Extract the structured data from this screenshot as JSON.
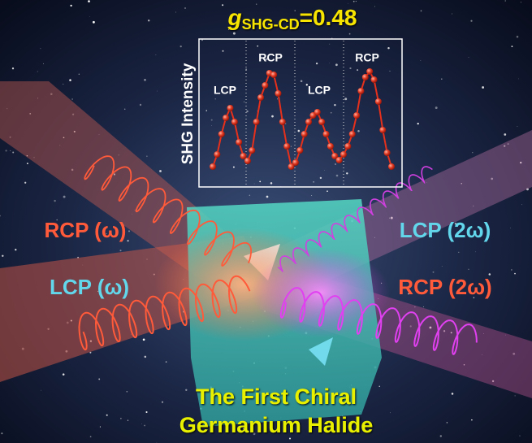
{
  "chart_data": {
    "type": "line",
    "title": {
      "symbol": "g",
      "subscript": "SHG-CD",
      "value": "=0.48"
    },
    "y_label": "SHG Intensity",
    "color": "#e5301c",
    "values": [
      25,
      40,
      65,
      85,
      97,
      80,
      55,
      38,
      32,
      45,
      80,
      110,
      125,
      140,
      138,
      115,
      80,
      50,
      25,
      30,
      45,
      65,
      80,
      88,
      92,
      80,
      65,
      50,
      38,
      33,
      40,
      50,
      65,
      88,
      118,
      135,
      142,
      132,
      105,
      70,
      42,
      25
    ],
    "annotations": [
      "LCP",
      "RCP",
      "LCP",
      "RCP"
    ]
  },
  "beam_labels": [
    {
      "text": "RCP (ω)",
      "color": "#ff5b3a"
    },
    {
      "text": "LCP (ω)",
      "color": "#62d6ea"
    },
    {
      "text": "LCP (2ω)",
      "color": "#62d6ea"
    },
    {
      "text": "RCP (2ω)",
      "color": "#ff5b3a"
    }
  ],
  "caption": [
    "The First Chiral",
    "Germanium Halide"
  ]
}
